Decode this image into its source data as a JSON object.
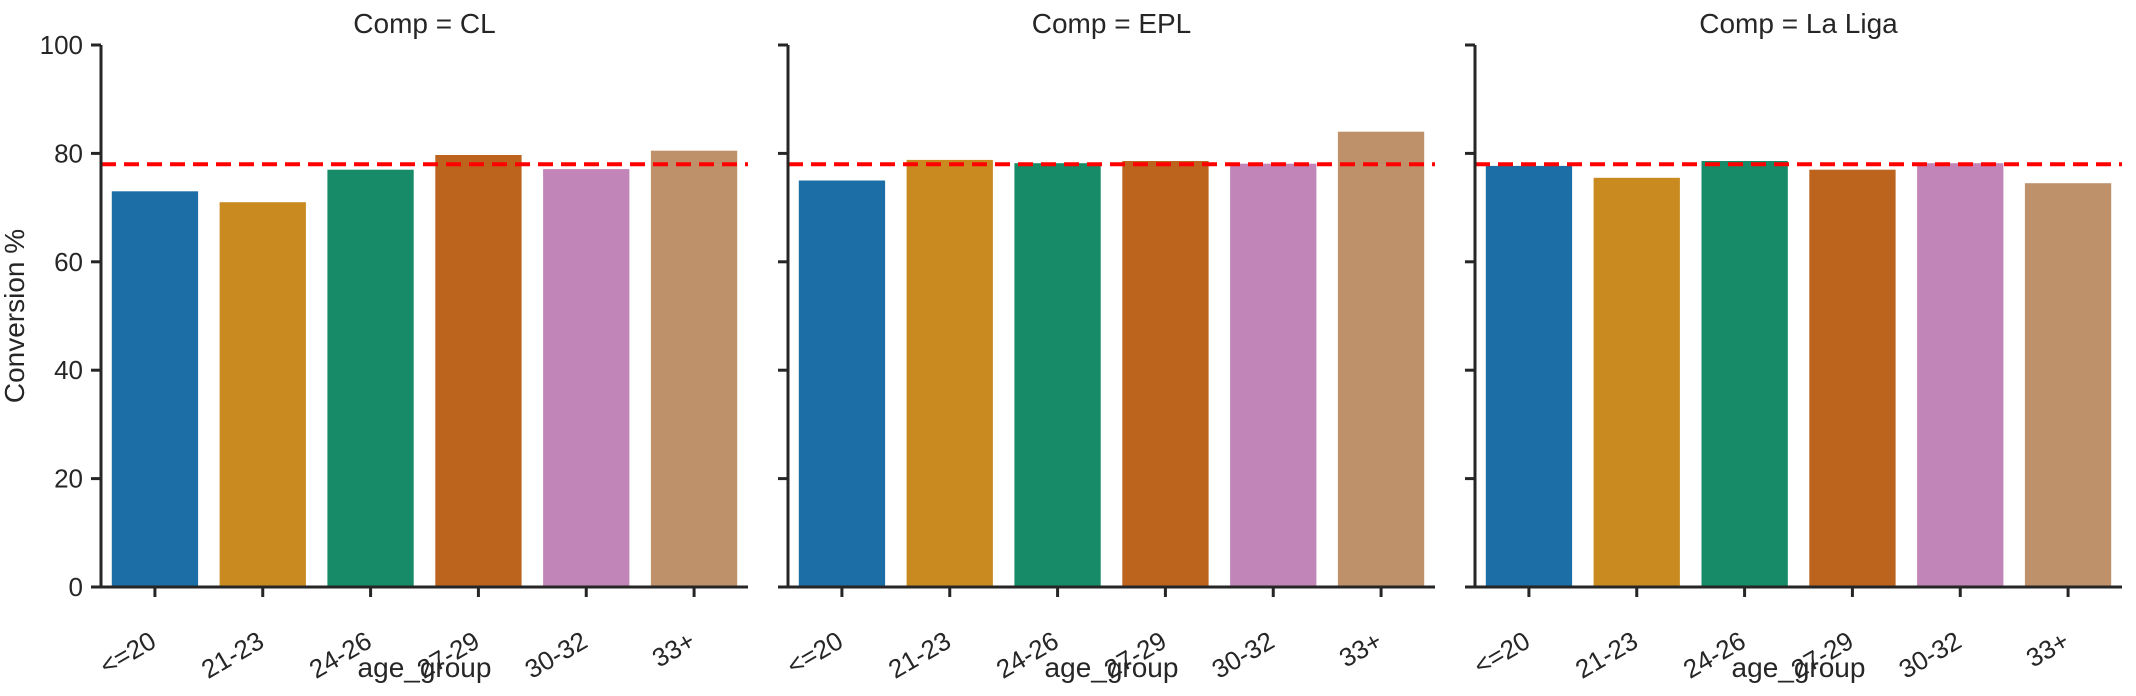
{
  "figure": {
    "background_color": "#ffffff",
    "text_color": "#262626",
    "spine_color": "#262626"
  },
  "chart_data": {
    "type": "bar",
    "faceted_by": "Comp",
    "categories": [
      "<=20",
      "21-23",
      "24-26",
      "27-29",
      "30-32",
      "33+"
    ],
    "facets": [
      {
        "label": "CL",
        "title": "Comp = CL",
        "values": [
          73.0,
          71.0,
          77.0,
          79.7,
          77.1,
          80.5
        ]
      },
      {
        "label": "EPL",
        "title": "Comp = EPL",
        "values": [
          75.0,
          78.8,
          78.2,
          78.6,
          78.1,
          84.0
        ]
      },
      {
        "label": "La Liga",
        "title": "Comp = La Liga",
        "values": [
          77.7,
          75.5,
          78.6,
          77.0,
          78.2,
          74.5
        ]
      }
    ],
    "xlabel": "age_group",
    "ylabel": "Conversion %",
    "ylim": [
      0,
      100
    ],
    "yticks": [
      0,
      20,
      40,
      60,
      80,
      100
    ],
    "x_tick_rotation_deg": 30,
    "grid": "off",
    "legend": "none",
    "reference_line": {
      "y": 78,
      "color": "#ff0000",
      "linestyle": "dashed"
    },
    "bar_colors": [
      "#1b6fa6",
      "#c98b20",
      "#178a67",
      "#bc631e",
      "#c285b8",
      "#be916b"
    ]
  }
}
